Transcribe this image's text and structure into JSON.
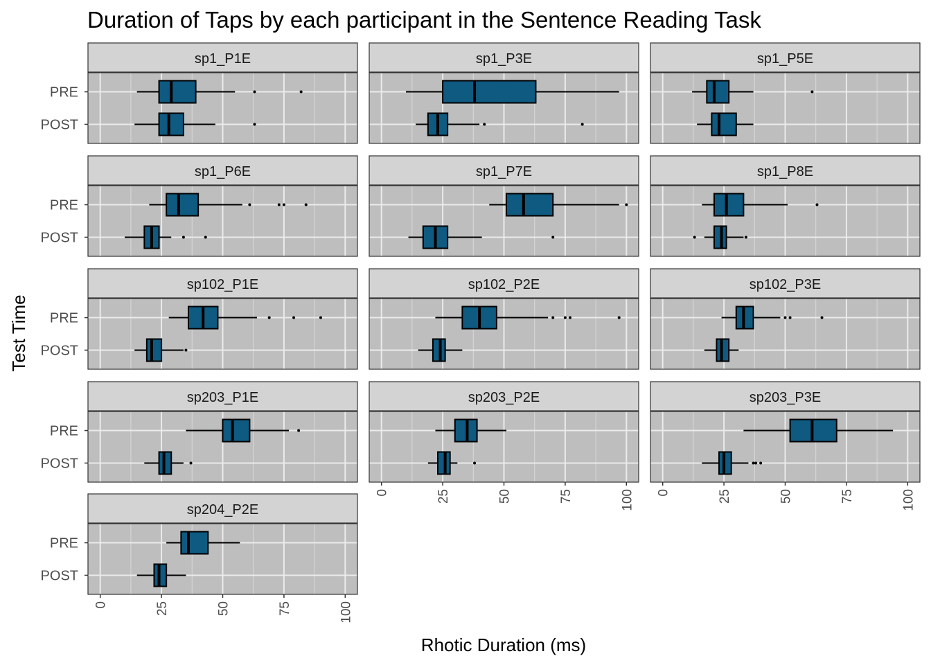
{
  "chart_data": {
    "type": "boxplot",
    "title": "Duration of Taps by each participant in the Sentence Reading Task",
    "xlabel": "Rhotic Duration (ms)",
    "ylabel": "Test Time",
    "xlim": [
      -5,
      105
    ],
    "x_ticks": [
      0,
      25,
      50,
      75,
      100
    ],
    "categories": [
      "PRE",
      "POST"
    ],
    "grid": true,
    "fill_color": "#0e5a80",
    "panel_background": "#bebebe",
    "strip_background": "#d3d3d3",
    "layout": "facet_wrap 3 columns",
    "panels": [
      {
        "name": "sp1_P1E",
        "PRE": {
          "lower": 15,
          "q1": 24,
          "median": 29,
          "q3": 39,
          "upper": 55,
          "outliers": [
            63,
            82
          ]
        },
        "POST": {
          "lower": 14,
          "q1": 24,
          "median": 28,
          "q3": 34,
          "upper": 47,
          "outliers": [
            63
          ]
        }
      },
      {
        "name": "sp1_P3E",
        "PRE": {
          "lower": 10,
          "q1": 25,
          "median": 38,
          "q3": 63,
          "upper": 97,
          "outliers": []
        },
        "POST": {
          "lower": 14,
          "q1": 19,
          "median": 23,
          "q3": 27,
          "upper": 40,
          "outliers": [
            42,
            82
          ]
        }
      },
      {
        "name": "sp1_P5E",
        "PRE": {
          "lower": 12,
          "q1": 18,
          "median": 21,
          "q3": 27,
          "upper": 37,
          "outliers": [
            61
          ]
        },
        "POST": {
          "lower": 14,
          "q1": 20,
          "median": 23,
          "q3": 30,
          "upper": 37,
          "outliers": []
        }
      },
      {
        "name": "sp1_P6E",
        "PRE": {
          "lower": 20,
          "q1": 27,
          "median": 32,
          "q3": 40,
          "upper": 58,
          "outliers": [
            61,
            73,
            75,
            84
          ]
        },
        "POST": {
          "lower": 10,
          "q1": 18,
          "median": 21,
          "q3": 24,
          "upper": 29,
          "outliers": [
            34,
            43
          ]
        }
      },
      {
        "name": "sp1_P7E",
        "PRE": {
          "lower": 44,
          "q1": 51,
          "median": 58,
          "q3": 70,
          "upper": 97,
          "outliers": [
            100
          ]
        },
        "POST": {
          "lower": 11,
          "q1": 17,
          "median": 22,
          "q3": 27,
          "upper": 41,
          "outliers": [
            70
          ]
        }
      },
      {
        "name": "sp1_P8E",
        "PRE": {
          "lower": 16,
          "q1": 21,
          "median": 26,
          "q3": 33,
          "upper": 51,
          "outliers": [
            63
          ]
        },
        "POST": {
          "lower": 17,
          "q1": 21,
          "median": 24,
          "q3": 26,
          "upper": 33,
          "outliers": [
            13,
            34
          ]
        }
      },
      {
        "name": "sp102_P1E",
        "PRE": {
          "lower": 28,
          "q1": 36,
          "median": 42,
          "q3": 48,
          "upper": 64,
          "outliers": [
            69,
            79,
            90
          ]
        },
        "POST": {
          "lower": 14,
          "q1": 19,
          "median": 21,
          "q3": 25,
          "upper": 34,
          "outliers": [
            35
          ]
        }
      },
      {
        "name": "sp102_P2E",
        "PRE": {
          "lower": 22,
          "q1": 33,
          "median": 40,
          "q3": 47,
          "upper": 68,
          "outliers": [
            70,
            75,
            77,
            97
          ]
        },
        "POST": {
          "lower": 15,
          "q1": 21,
          "median": 24,
          "q3": 26,
          "upper": 33,
          "outliers": []
        }
      },
      {
        "name": "sp102_P3E",
        "PRE": {
          "lower": 24,
          "q1": 30,
          "median": 33,
          "q3": 37,
          "upper": 48,
          "outliers": [
            50,
            52,
            65
          ]
        },
        "POST": {
          "lower": 17,
          "q1": 22,
          "median": 24,
          "q3": 27,
          "upper": 31,
          "outliers": []
        }
      },
      {
        "name": "sp203_P1E",
        "PRE": {
          "lower": 35,
          "q1": 50,
          "median": 54,
          "q3": 61,
          "upper": 77,
          "outliers": [
            81
          ]
        },
        "POST": {
          "lower": 18,
          "q1": 24,
          "median": 26,
          "q3": 29,
          "upper": 34,
          "outliers": [
            37
          ]
        }
      },
      {
        "name": "sp203_P2E",
        "PRE": {
          "lower": 22,
          "q1": 30,
          "median": 35,
          "q3": 39,
          "upper": 51,
          "outliers": []
        },
        "POST": {
          "lower": 19,
          "q1": 23,
          "median": 26,
          "q3": 28,
          "upper": 31,
          "outliers": [
            38
          ]
        }
      },
      {
        "name": "sp203_P3E",
        "PRE": {
          "lower": 33,
          "q1": 52,
          "median": 61,
          "q3": 71,
          "upper": 94,
          "outliers": []
        },
        "POST": {
          "lower": 16,
          "q1": 23,
          "median": 25,
          "q3": 28,
          "upper": 35,
          "outliers": [
            37,
            38,
            40
          ]
        }
      },
      {
        "name": "sp204_P2E",
        "PRE": {
          "lower": 27,
          "q1": 33,
          "median": 36,
          "q3": 44,
          "upper": 57,
          "outliers": []
        },
        "POST": {
          "lower": 15,
          "q1": 22,
          "median": 24,
          "q3": 27,
          "upper": 35,
          "outliers": []
        }
      }
    ]
  }
}
